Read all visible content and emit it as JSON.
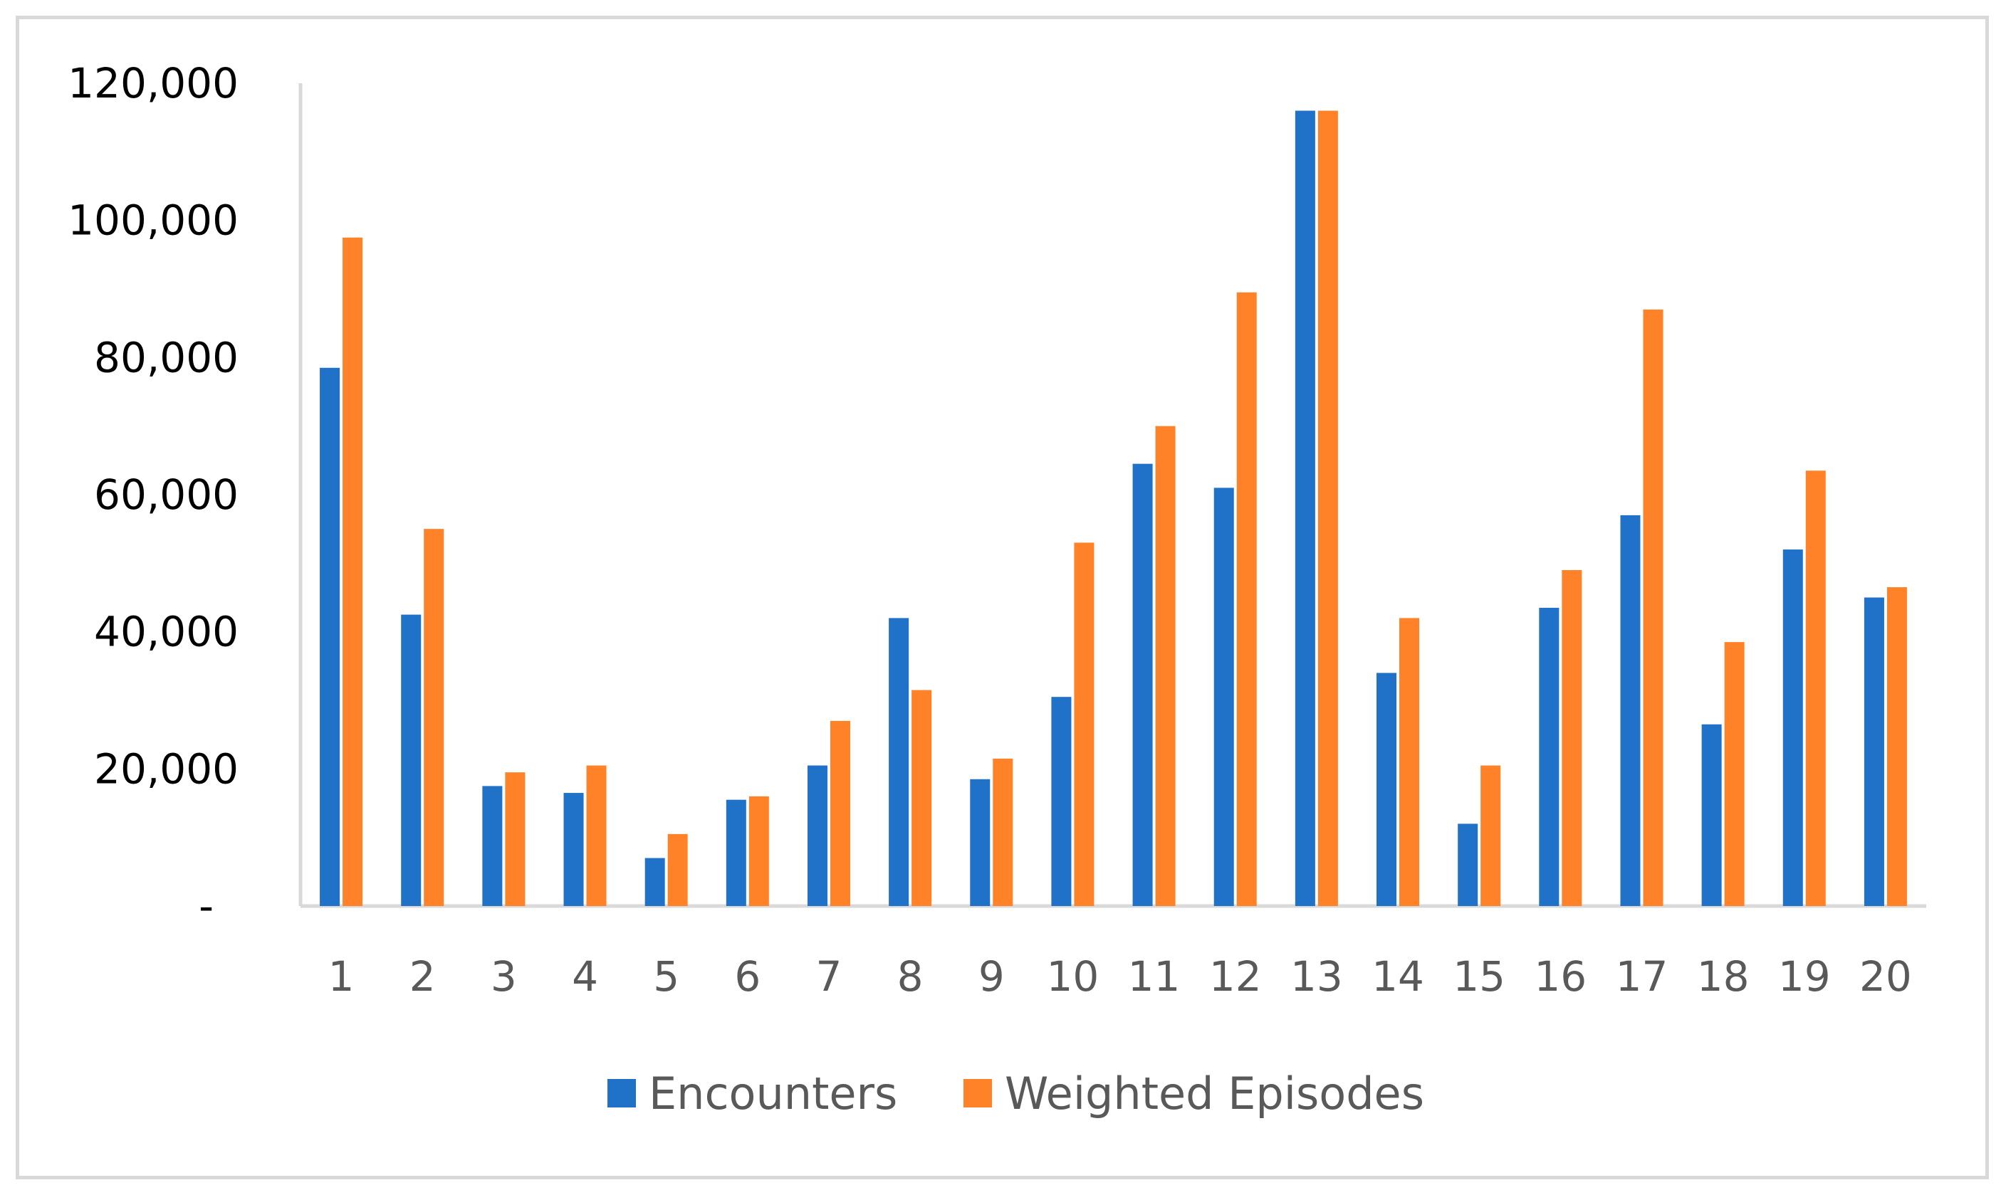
{
  "chart_data": {
    "type": "bar",
    "categories": [
      "1",
      "2",
      "3",
      "4",
      "5",
      "6",
      "7",
      "8",
      "9",
      "10",
      "11",
      "12",
      "13",
      "14",
      "15",
      "16",
      "17",
      "18",
      "19",
      "20"
    ],
    "series": [
      {
        "name": "Encounters",
        "color": "#1f72c7",
        "values": [
          78500,
          42500,
          17500,
          16500,
          7000,
          15500,
          20500,
          42000,
          18500,
          30500,
          64500,
          61000,
          116000,
          34000,
          12000,
          43500,
          57000,
          26500,
          52000,
          45000
        ]
      },
      {
        "name": "Weighted Episodes",
        "color": "#ff8228",
        "values": [
          97500,
          55000,
          19500,
          20500,
          10500,
          16000,
          27000,
          31500,
          21500,
          53000,
          70000,
          89500,
          116000,
          42000,
          20500,
          49000,
          87000,
          38500,
          63500,
          46500
        ]
      }
    ],
    "y_ticks": [
      "-",
      "20,000",
      "40,000",
      "60,000",
      "80,000",
      "100,000",
      "120,000"
    ],
    "y_tick_values": [
      0,
      20000,
      40000,
      60000,
      80000,
      100000,
      120000
    ],
    "ylim": [
      0,
      120000
    ],
    "title": "",
    "xlabel": "",
    "ylabel": "",
    "grid": false,
    "legend_position": "bottom"
  }
}
